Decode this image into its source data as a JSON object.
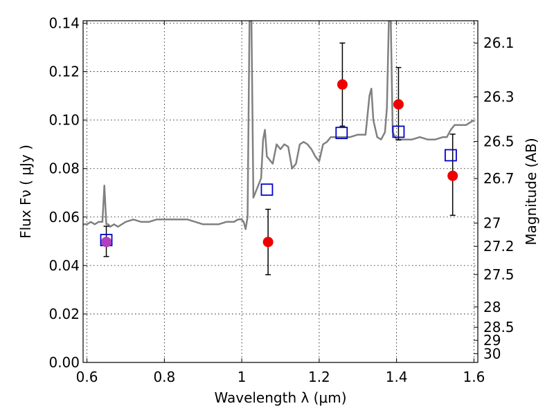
{
  "chart_data": {
    "type": "scatter",
    "xlabel": "Wavelength  λ (μm)",
    "ylabel": "Flux  Fν  ( μJy )",
    "y2label": "Magnitude (AB)",
    "xlim": [
      0.59,
      1.61
    ],
    "ylim": [
      0.0,
      0.141
    ],
    "grid": true,
    "x_ticks": [
      0.6,
      0.8,
      1.0,
      1.2,
      1.4,
      1.6
    ],
    "x_tick_labels": [
      "0.6",
      "0.8",
      "1",
      "1.2",
      "1.4",
      "1.6"
    ],
    "y_ticks": [
      0.0,
      0.02,
      0.04,
      0.06,
      0.08,
      0.1,
      0.12,
      0.14
    ],
    "y_tick_labels": [
      "0.00",
      "0.02",
      "0.04",
      "0.06",
      "0.08",
      "0.10",
      "0.12",
      "0.14"
    ],
    "y2_ticks": [
      {
        "label": "26.1",
        "flux": 0.1318
      },
      {
        "label": "26.3",
        "flux": 0.1096
      },
      {
        "label": "26.5",
        "flux": 0.0912
      },
      {
        "label": "26.7",
        "flux": 0.0759
      },
      {
        "label": "27",
        "flux": 0.0575
      },
      {
        "label": "27.2",
        "flux": 0.0479
      },
      {
        "label": "27.5",
        "flux": 0.0363
      },
      {
        "label": "28",
        "flux": 0.0229
      },
      {
        "label": "28.5",
        "flux": 0.0145
      },
      {
        "label": "29",
        "flux": 0.0091
      },
      {
        "label": "30",
        "flux": 0.0036
      }
    ],
    "series": [
      {
        "kind": "line",
        "color": "#808080",
        "x": [
          0.59,
          0.6,
          0.61,
          0.62,
          0.63,
          0.64,
          0.645,
          0.65,
          0.655,
          0.66,
          0.67,
          0.68,
          0.69,
          0.7,
          0.72,
          0.74,
          0.76,
          0.78,
          0.8,
          0.82,
          0.84,
          0.86,
          0.88,
          0.9,
          0.92,
          0.94,
          0.96,
          0.98,
          0.99,
          1.0,
          1.005,
          1.01,
          1.015,
          1.02,
          1.025,
          1.03,
          1.04,
          1.05,
          1.055,
          1.06,
          1.065,
          1.07,
          1.08,
          1.09,
          1.1,
          1.11,
          1.12,
          1.13,
          1.14,
          1.15,
          1.16,
          1.17,
          1.18,
          1.19,
          1.2,
          1.21,
          1.22,
          1.23,
          1.24,
          1.26,
          1.28,
          1.3,
          1.32,
          1.33,
          1.335,
          1.34,
          1.35,
          1.36,
          1.37,
          1.375,
          1.38,
          1.385,
          1.39,
          1.4,
          1.42,
          1.44,
          1.46,
          1.48,
          1.5,
          1.52,
          1.53,
          1.54,
          1.55,
          1.56,
          1.58,
          1.6
        ],
        "y": [
          0.057,
          0.057,
          0.058,
          0.057,
          0.058,
          0.058,
          0.073,
          0.057,
          0.057,
          0.056,
          0.057,
          0.056,
          0.057,
          0.058,
          0.059,
          0.058,
          0.058,
          0.059,
          0.059,
          0.059,
          0.059,
          0.059,
          0.058,
          0.057,
          0.057,
          0.057,
          0.058,
          0.058,
          0.059,
          0.059,
          0.058,
          0.055,
          0.06,
          0.141,
          0.141,
          0.068,
          0.072,
          0.076,
          0.092,
          0.096,
          0.085,
          0.084,
          0.082,
          0.09,
          0.088,
          0.09,
          0.089,
          0.08,
          0.082,
          0.09,
          0.091,
          0.09,
          0.088,
          0.085,
          0.083,
          0.09,
          0.091,
          0.093,
          0.093,
          0.093,
          0.093,
          0.094,
          0.094,
          0.11,
          0.113,
          0.1,
          0.093,
          0.092,
          0.095,
          0.105,
          0.141,
          0.141,
          0.095,
          0.092,
          0.092,
          0.092,
          0.093,
          0.092,
          0.092,
          0.093,
          0.093,
          0.096,
          0.098,
          0.098,
          0.098,
          0.1
        ]
      },
      {
        "kind": "open-square",
        "color": "#0000cc",
        "x": [
          0.65,
          1.065,
          1.258,
          1.405,
          1.54
        ],
        "y": [
          0.0505,
          0.0713,
          0.0947,
          0.0952,
          0.0855
        ]
      },
      {
        "kind": "errorbar-point",
        "color": "#ee0000",
        "x": [
          0.65,
          1.068,
          1.26,
          1.405,
          1.545
        ],
        "y": [
          0.0497,
          0.0497,
          0.1147,
          0.1065,
          0.077
        ],
        "yerr_low": [
          0.0437,
          0.0362,
          0.0975,
          0.0918,
          0.0607
        ],
        "yerr_high": [
          0.0562,
          0.0632,
          0.1318,
          0.1217,
          0.0942
        ]
      },
      {
        "kind": "highlight-point",
        "color": "#b040c0",
        "x": [
          0.65
        ],
        "y": [
          0.0497
        ]
      }
    ]
  }
}
